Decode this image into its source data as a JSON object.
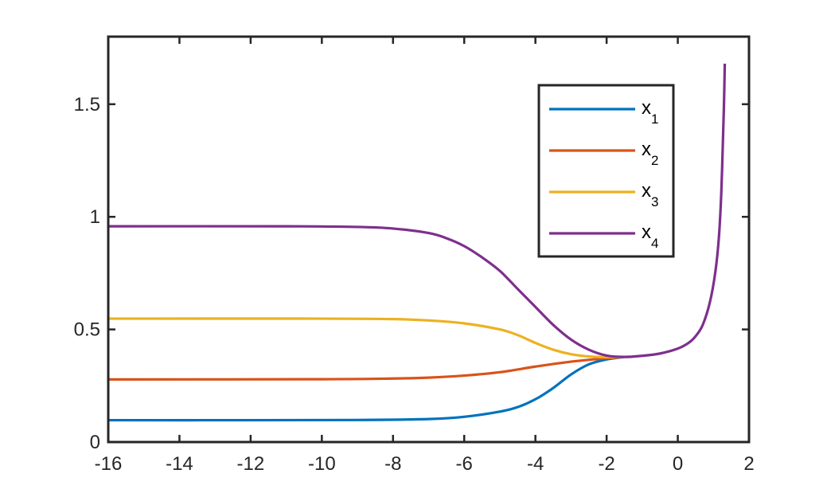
{
  "chart_data": {
    "type": "line",
    "title": "",
    "xlabel": "",
    "ylabel": "",
    "xlim": [
      -16,
      2
    ],
    "ylim": [
      0,
      1.8
    ],
    "xticks": [
      "-16",
      "-14",
      "-12",
      "-10",
      "-8",
      "-6",
      "-4",
      "-2",
      "0",
      "2"
    ],
    "yticks": [
      "0",
      "0.5",
      "1",
      "1.5"
    ],
    "grid": false,
    "legend_position": "top-right",
    "series": [
      {
        "name": "x",
        "sub": "1",
        "color": "#0072BD",
        "points": [
          [
            -16,
            0.097
          ],
          [
            -12,
            0.097
          ],
          [
            -9,
            0.098
          ],
          [
            -7,
            0.102
          ],
          [
            -6,
            0.112
          ],
          [
            -5,
            0.135
          ],
          [
            -4.5,
            0.155
          ],
          [
            -4,
            0.19
          ],
          [
            -3.5,
            0.24
          ],
          [
            -3,
            0.3
          ],
          [
            -2.5,
            0.345
          ],
          [
            -2,
            0.367
          ],
          [
            -1.5,
            0.378
          ]
        ]
      },
      {
        "name": "x",
        "sub": "2",
        "color": "#D95319",
        "points": [
          [
            -16,
            0.278
          ],
          [
            -10,
            0.279
          ],
          [
            -8,
            0.282
          ],
          [
            -7,
            0.286
          ],
          [
            -6,
            0.295
          ],
          [
            -5,
            0.31
          ],
          [
            -4,
            0.335
          ],
          [
            -3,
            0.357
          ],
          [
            -2,
            0.372
          ],
          [
            -1.5,
            0.378
          ]
        ]
      },
      {
        "name": "x",
        "sub": "3",
        "color": "#EDB120",
        "points": [
          [
            -16,
            0.548
          ],
          [
            -10,
            0.548
          ],
          [
            -8,
            0.546
          ],
          [
            -7,
            0.54
          ],
          [
            -6,
            0.527
          ],
          [
            -5,
            0.5
          ],
          [
            -4.5,
            0.475
          ],
          [
            -4,
            0.44
          ],
          [
            -3.5,
            0.41
          ],
          [
            -3,
            0.39
          ],
          [
            -2.5,
            0.38
          ],
          [
            -2,
            0.377
          ],
          [
            -1.5,
            0.378
          ]
        ]
      },
      {
        "name": "x",
        "sub": "4",
        "color": "#7E2F8E",
        "points": [
          [
            -16,
            0.958
          ],
          [
            -11,
            0.958
          ],
          [
            -9,
            0.955
          ],
          [
            -8,
            0.948
          ],
          [
            -7,
            0.928
          ],
          [
            -6.5,
            0.905
          ],
          [
            -6,
            0.87
          ],
          [
            -5.5,
            0.82
          ],
          [
            -5,
            0.76
          ],
          [
            -4.5,
            0.68
          ],
          [
            -4,
            0.6
          ],
          [
            -3.5,
            0.52
          ],
          [
            -3,
            0.455
          ],
          [
            -2.5,
            0.41
          ],
          [
            -2,
            0.384
          ],
          [
            -1.5,
            0.378
          ],
          [
            -1,
            0.383
          ],
          [
            -0.5,
            0.393
          ],
          [
            0,
            0.415
          ],
          [
            0.3,
            0.44
          ],
          [
            0.5,
            0.47
          ],
          [
            0.7,
            0.52
          ],
          [
            0.9,
            0.62
          ],
          [
            1.05,
            0.75
          ],
          [
            1.15,
            0.9
          ],
          [
            1.22,
            1.1
          ],
          [
            1.27,
            1.35
          ],
          [
            1.3,
            1.52
          ],
          [
            1.32,
            1.68
          ]
        ]
      }
    ]
  }
}
